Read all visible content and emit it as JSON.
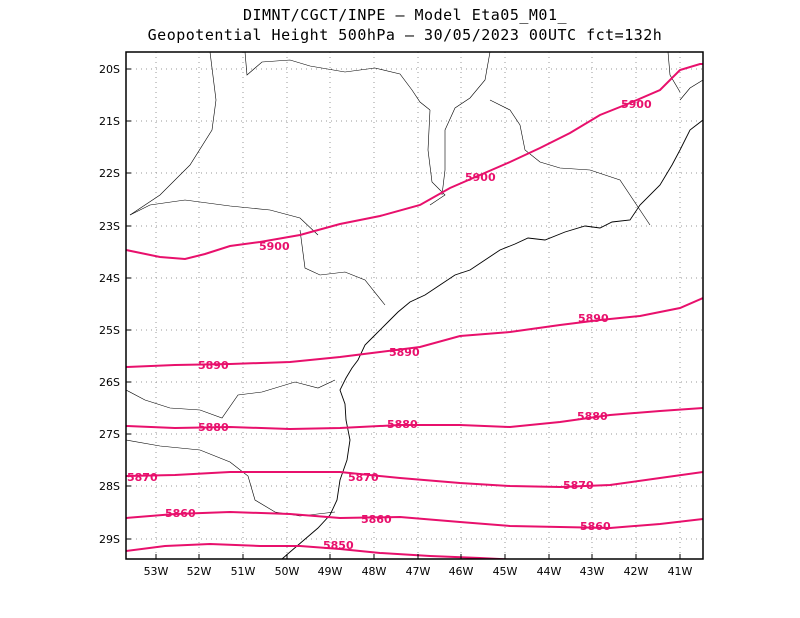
{
  "title_line1": "DIMNT/CGCT/INPE –   Model Eta05_M01_",
  "title_line2": "Geopotential Height 500hPa –  30/05/2023 00UTC fct=132h",
  "lat_labels": [
    "20S",
    "21S",
    "22S",
    "23S",
    "24S",
    "25S",
    "26S",
    "27S",
    "28S",
    "29S"
  ],
  "lon_labels": [
    "53W",
    "52W",
    "51W",
    "50W",
    "49W",
    "48W",
    "47W",
    "46W",
    "45W",
    "44W",
    "43W",
    "42W",
    "41W"
  ],
  "contour_color": "#e8106c",
  "contours": [
    {
      "value": 5900,
      "labels": [
        "5900",
        "5900",
        "5900"
      ]
    },
    {
      "value": 5890,
      "labels": [
        "5890",
        "5890",
        "5890"
      ]
    },
    {
      "value": 5880,
      "labels": [
        "5880",
        "5880",
        "5880"
      ]
    },
    {
      "value": 5870,
      "labels": [
        "5870",
        "5870",
        "5870"
      ]
    },
    {
      "value": 5860,
      "labels": [
        "5860",
        "5860",
        "5860"
      ]
    },
    {
      "value": 5850,
      "labels": [
        "5850"
      ]
    }
  ]
}
